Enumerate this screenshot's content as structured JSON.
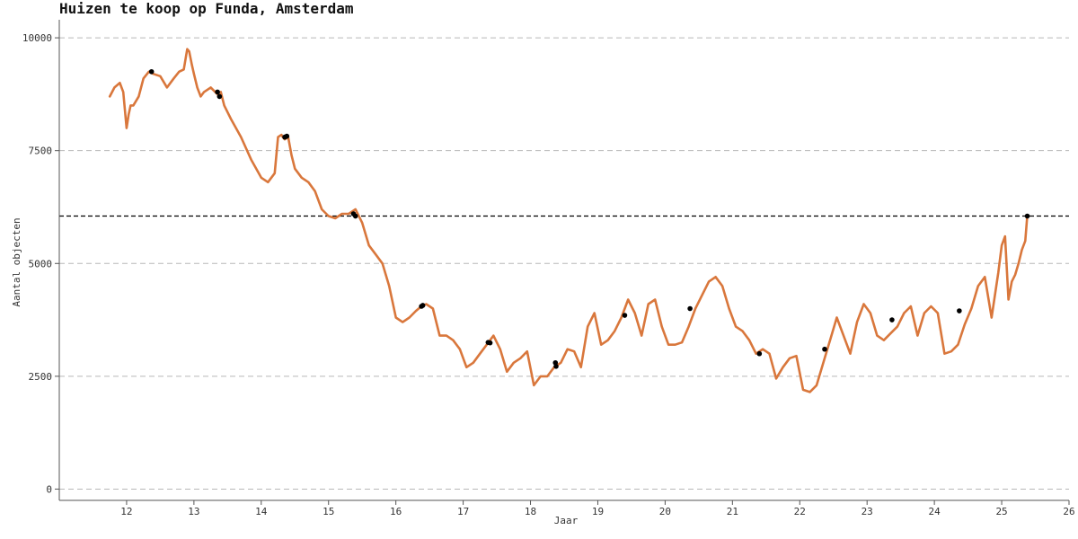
{
  "chart_data": {
    "type": "line",
    "title": "Huizen te koop op Funda, Amsterdam",
    "xlabel": "Jaar",
    "ylabel": "Aantal objecten",
    "xlim": [
      11.0,
      26.0
    ],
    "ylim": [
      -250,
      10400
    ],
    "x_ticks": [
      12,
      13,
      14,
      15,
      16,
      17,
      18,
      19,
      20,
      21,
      22,
      23,
      24,
      25,
      26
    ],
    "y_ticks": [
      0,
      2500,
      5000,
      7500,
      10000
    ],
    "grid": "horizontal dashed",
    "reference_line": {
      "y": 6050,
      "style": "dashed",
      "color": "#000000"
    },
    "line_color": "#d9773c",
    "marker_color": "#000000",
    "series": [
      {
        "x": [
          11.75,
          11.82,
          11.9,
          11.95,
          12.0,
          12.03,
          12.06,
          12.1,
          12.18,
          12.25,
          12.33,
          12.4,
          12.5,
          12.6,
          12.7,
          12.78,
          12.85,
          12.9,
          12.93,
          12.97,
          13.0,
          13.05,
          13.1,
          13.15,
          13.25,
          13.35,
          13.4,
          13.45,
          13.55,
          13.7,
          13.85,
          14.0,
          14.1,
          14.2,
          14.25,
          14.3,
          14.32,
          14.35,
          14.4,
          14.45,
          14.5,
          14.6,
          14.7,
          14.8,
          14.9,
          15.0,
          15.1,
          15.2,
          15.3,
          15.4,
          15.5,
          15.6,
          15.7,
          15.8,
          15.9,
          16.0,
          16.1,
          16.2,
          16.3,
          16.38,
          16.45,
          16.55,
          16.65,
          16.75,
          16.85,
          16.95,
          17.05,
          17.15,
          17.25,
          17.35,
          17.45,
          17.55,
          17.65,
          17.75,
          17.85,
          17.95,
          18.05,
          18.15,
          18.25,
          18.35,
          18.45,
          18.55,
          18.65,
          18.75,
          18.85,
          18.95,
          19.05,
          19.15,
          19.25,
          19.35,
          19.45,
          19.55,
          19.65,
          19.75,
          19.85,
          19.95,
          20.05,
          20.15,
          20.25,
          20.35,
          20.45,
          20.55,
          20.65,
          20.75,
          20.85,
          20.95,
          21.05,
          21.15,
          21.25,
          21.35,
          21.45,
          21.55,
          21.65,
          21.75,
          21.85,
          21.95,
          22.05,
          22.15,
          22.25,
          22.35,
          22.45,
          22.55,
          22.65,
          22.75,
          22.85,
          22.95,
          23.05,
          23.15,
          23.25,
          23.35,
          23.45,
          23.55,
          23.65,
          23.75,
          23.85,
          23.95,
          24.05,
          24.15,
          24.25,
          24.35,
          24.45,
          24.55,
          24.65,
          24.75,
          24.85,
          24.95,
          25.0,
          25.05,
          25.1,
          25.15,
          25.2,
          25.25,
          25.3,
          25.35,
          25.38
        ],
        "y": [
          8700,
          8900,
          9000,
          8800,
          8000,
          8300,
          8500,
          8500,
          8700,
          9100,
          9250,
          9200,
          9150,
          8900,
          9100,
          9250,
          9300,
          9750,
          9700,
          9400,
          9200,
          8900,
          8700,
          8800,
          8900,
          8750,
          8800,
          8500,
          8200,
          7800,
          7300,
          6900,
          6800,
          7000,
          7800,
          7850,
          7800,
          7750,
          7800,
          7400,
          7100,
          6900,
          6800,
          6600,
          6200,
          6050,
          6000,
          6100,
          6100,
          6200,
          5900,
          5400,
          5200,
          5000,
          4500,
          3800,
          3700,
          3800,
          3950,
          4050,
          4100,
          4000,
          3400,
          3400,
          3300,
          3100,
          2700,
          2800,
          3000,
          3200,
          3400,
          3100,
          2600,
          2800,
          2900,
          3050,
          2300,
          2500,
          2500,
          2700,
          2800,
          3100,
          3050,
          2700,
          3600,
          3900,
          3200,
          3300,
          3500,
          3800,
          4200,
          3900,
          3400,
          4100,
          4200,
          3600,
          3200,
          3200,
          3250,
          3600,
          4000,
          4300,
          4600,
          4700,
          4500,
          4000,
          3600,
          3500,
          3300,
          3000,
          3100,
          3000,
          2450,
          2700,
          2900,
          2950,
          2200,
          2150,
          2300,
          2800,
          3300,
          3800,
          3400,
          3000,
          3700,
          4100,
          3900,
          3400,
          3300,
          3450,
          3600,
          3900,
          4050,
          3400,
          3900,
          4050,
          3900,
          3000,
          3050,
          3200,
          3650,
          4000,
          4500,
          4700,
          3800,
          4800,
          5400,
          5600,
          4200,
          4600,
          4750,
          5000,
          5300,
          5500,
          6050
        ]
      }
    ],
    "markers": {
      "x": [
        12.37,
        13.35,
        13.38,
        14.35,
        14.38,
        15.37,
        15.4,
        16.38,
        16.4,
        17.37,
        17.4,
        18.37,
        18.38,
        19.4,
        20.37,
        21.4,
        22.37,
        23.37,
        24.37,
        25.38
      ],
      "y": [
        9250,
        8800,
        8700,
        7800,
        7820,
        6100,
        6050,
        4050,
        4070,
        3250,
        3240,
        2800,
        2720,
        3850,
        4000,
        3000,
        3100,
        3750,
        3950,
        6050
      ]
    }
  }
}
